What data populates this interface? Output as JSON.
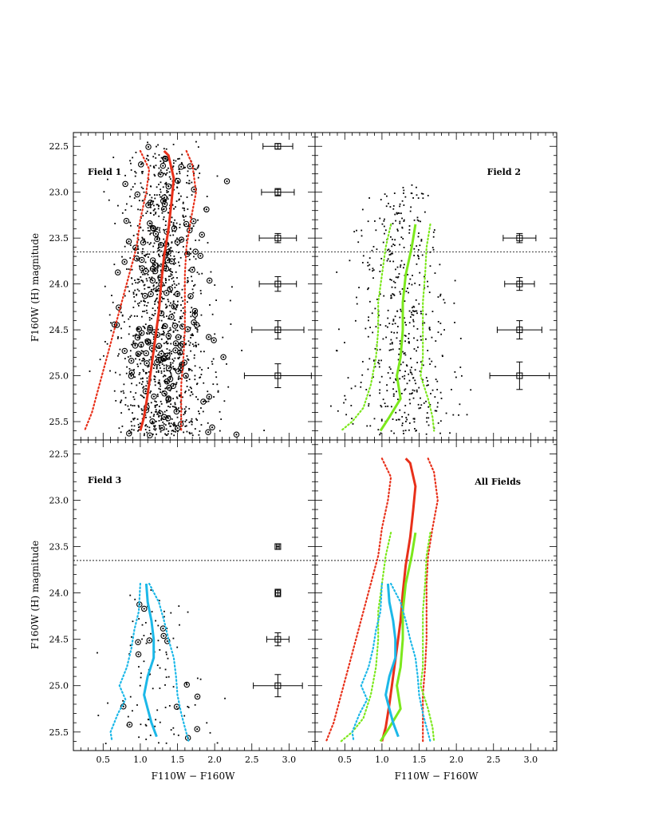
{
  "figure": {
    "x_axis_label": "F110W − F160W",
    "y_axis_label": "F160W (H) magnitude"
  },
  "colors": {
    "field1": "#e8301a",
    "field2": "#7ce81c",
    "field3": "#1cb8e8",
    "points": "#000000"
  },
  "chart_data": [
    {
      "type": "scatter",
      "title": "Field 1",
      "xlabel": "",
      "ylabel": "F160W (H) magnitude",
      "xlim": [
        0.1,
        3.35
      ],
      "ylim": [
        25.7,
        22.35
      ],
      "x_ticks": [],
      "y_ticks": [
        "22.5",
        "23.0",
        "23.5",
        "24.0",
        "24.5",
        "25.0",
        "25.5"
      ],
      "limit_line_y": 23.65,
      "error_bars": [
        {
          "x": 2.85,
          "y": 22.5,
          "xerr": 0.2,
          "yerr": 0.03
        },
        {
          "x": 2.85,
          "y": 23.0,
          "xerr": 0.22,
          "yerr": 0.04
        },
        {
          "x": 2.85,
          "y": 23.5,
          "xerr": 0.25,
          "yerr": 0.05
        },
        {
          "x": 2.85,
          "y": 24.0,
          "xerr": 0.25,
          "yerr": 0.08
        },
        {
          "x": 2.85,
          "y": 24.5,
          "xerr": 0.35,
          "yerr": 0.1
        },
        {
          "x": 2.85,
          "y": 25.0,
          "xerr": 0.45,
          "yerr": 0.13
        }
      ],
      "stars": {
        "n_points": 1400,
        "color_center": 1.3,
        "color_spread": 0.32,
        "mag_min": 22.45,
        "mag_max": 25.65,
        "ring_fraction": 0.12,
        "seed": 11
      },
      "series": [
        {
          "color_key": "field1",
          "median": [
            [
              1.32,
              22.55
            ],
            [
              1.38,
              22.6
            ],
            [
              1.45,
              22.85
            ],
            [
              1.42,
              23.1
            ],
            [
              1.38,
              23.4
            ],
            [
              1.32,
              23.7
            ],
            [
              1.28,
              24.0
            ],
            [
              1.25,
              24.3
            ],
            [
              1.2,
              24.6
            ],
            [
              1.15,
              24.9
            ],
            [
              1.1,
              25.2
            ],
            [
              1.05,
              25.45
            ],
            [
              1.0,
              25.6
            ]
          ],
          "lower": [
            [
              1.0,
              22.55
            ],
            [
              1.12,
              22.75
            ],
            [
              1.08,
              23.0
            ],
            [
              1.0,
              23.3
            ],
            [
              0.95,
              23.6
            ],
            [
              0.85,
              23.9
            ],
            [
              0.75,
              24.2
            ],
            [
              0.65,
              24.5
            ],
            [
              0.55,
              24.8
            ],
            [
              0.45,
              25.1
            ],
            [
              0.35,
              25.4
            ],
            [
              0.25,
              25.6
            ]
          ],
          "upper": [
            [
              1.62,
              22.55
            ],
            [
              1.7,
              22.7
            ],
            [
              1.75,
              23.0
            ],
            [
              1.68,
              23.3
            ],
            [
              1.62,
              23.6
            ],
            [
              1.6,
              23.9
            ],
            [
              1.6,
              24.2
            ],
            [
              1.6,
              24.5
            ],
            [
              1.58,
              24.8
            ],
            [
              1.55,
              25.1
            ],
            [
              1.55,
              25.4
            ],
            [
              1.55,
              25.6
            ]
          ]
        }
      ]
    },
    {
      "type": "scatter",
      "title": "Field 2",
      "xlabel": "",
      "ylabel": "",
      "xlim": [
        0.1,
        3.35
      ],
      "ylim": [
        25.7,
        22.35
      ],
      "x_ticks": [],
      "y_ticks": [],
      "limit_line_y": 23.65,
      "error_bars": [
        {
          "x": 2.85,
          "y": 23.5,
          "xerr": 0.22,
          "yerr": 0.05
        },
        {
          "x": 2.85,
          "y": 24.0,
          "xerr": 0.2,
          "yerr": 0.07
        },
        {
          "x": 2.85,
          "y": 24.5,
          "xerr": 0.3,
          "yerr": 0.1
        },
        {
          "x": 2.85,
          "y": 25.0,
          "xerr": 0.4,
          "yerr": 0.15
        }
      ],
      "stars": {
        "n_points": 520,
        "color_center": 1.25,
        "color_spread": 0.34,
        "mag_min": 22.9,
        "mag_max": 25.65,
        "ring_fraction": 0.0,
        "seed": 23
      },
      "series": [
        {
          "color_key": "field2",
          "median": [
            [
              1.45,
              23.35
            ],
            [
              1.4,
              23.6
            ],
            [
              1.32,
              23.9
            ],
            [
              1.28,
              24.2
            ],
            [
              1.28,
              24.5
            ],
            [
              1.25,
              24.8
            ],
            [
              1.2,
              25.0
            ],
            [
              1.25,
              25.25
            ],
            [
              1.1,
              25.45
            ],
            [
              0.98,
              25.6
            ]
          ],
          "lower": [
            [
              1.12,
              23.35
            ],
            [
              1.05,
              23.6
            ],
            [
              1.0,
              23.9
            ],
            [
              0.95,
              24.2
            ],
            [
              0.95,
              24.5
            ],
            [
              0.92,
              24.8
            ],
            [
              0.85,
              25.1
            ],
            [
              0.75,
              25.35
            ],
            [
              0.6,
              25.5
            ],
            [
              0.45,
              25.6
            ]
          ],
          "upper": [
            [
              1.65,
              23.35
            ],
            [
              1.6,
              23.6
            ],
            [
              1.58,
              23.9
            ],
            [
              1.55,
              24.2
            ],
            [
              1.55,
              24.5
            ],
            [
              1.55,
              24.8
            ],
            [
              1.52,
              25.0
            ],
            [
              1.62,
              25.25
            ],
            [
              1.68,
              25.45
            ],
            [
              1.7,
              25.6
            ]
          ]
        }
      ]
    },
    {
      "type": "scatter",
      "title": "Field 3",
      "xlabel": "F110W − F160W",
      "ylabel": "F160W (H) magnitude",
      "xlim": [
        0.1,
        3.35
      ],
      "ylim": [
        25.7,
        22.35
      ],
      "x_ticks": [
        "0.5",
        "1.0",
        "1.5",
        "2.0",
        "2.5",
        "3.0"
      ],
      "y_ticks": [
        "22.5",
        "23.0",
        "23.5",
        "24.0",
        "24.5",
        "25.0",
        "25.5"
      ],
      "limit_line_y": 23.65,
      "error_bars": [
        {
          "x": 2.85,
          "y": 23.5,
          "xerr": 0.02,
          "yerr": 0.03
        },
        {
          "x": 2.85,
          "y": 24.0,
          "xerr": 0.03,
          "yerr": 0.04
        },
        {
          "x": 2.85,
          "y": 24.5,
          "xerr": 0.15,
          "yerr": 0.07
        },
        {
          "x": 2.85,
          "y": 25.0,
          "xerr": 0.33,
          "yerr": 0.12
        }
      ],
      "stars": {
        "n_points": 110,
        "color_center": 1.2,
        "color_spread": 0.35,
        "mag_min": 23.9,
        "mag_max": 25.65,
        "ring_fraction": 0.14,
        "seed": 37
      },
      "series": [
        {
          "color_key": "field3",
          "median": [
            [
              1.08,
              23.9
            ],
            [
              1.1,
              24.1
            ],
            [
              1.15,
              24.3
            ],
            [
              1.18,
              24.5
            ],
            [
              1.18,
              24.7
            ],
            [
              1.1,
              24.9
            ],
            [
              1.05,
              25.1
            ],
            [
              1.1,
              25.25
            ],
            [
              1.15,
              25.4
            ],
            [
              1.22,
              25.55
            ]
          ],
          "lower": [
            [
              1.0,
              23.9
            ],
            [
              0.98,
              24.2
            ],
            [
              0.92,
              24.4
            ],
            [
              0.88,
              24.6
            ],
            [
              0.82,
              24.8
            ],
            [
              0.72,
              25.0
            ],
            [
              0.8,
              25.15
            ],
            [
              0.7,
              25.3
            ],
            [
              0.6,
              25.5
            ],
            [
              0.62,
              25.6
            ]
          ],
          "upper": [
            [
              1.12,
              23.9
            ],
            [
              1.25,
              24.1
            ],
            [
              1.32,
              24.3
            ],
            [
              1.38,
              24.5
            ],
            [
              1.45,
              24.7
            ],
            [
              1.48,
              24.9
            ],
            [
              1.5,
              25.1
            ],
            [
              1.55,
              25.3
            ],
            [
              1.6,
              25.45
            ],
            [
              1.65,
              25.6
            ]
          ]
        }
      ]
    },
    {
      "type": "line",
      "title": "All Fields",
      "xlabel": "F110W − F160W",
      "ylabel": "",
      "xlim": [
        0.1,
        3.35
      ],
      "ylim": [
        25.7,
        22.35
      ],
      "x_ticks": [
        "0.5",
        "1.0",
        "1.5",
        "2.0",
        "2.5",
        "3.0"
      ],
      "y_ticks": [],
      "limit_line_y": 23.65,
      "error_bars": [],
      "series": [
        {
          "color_key": "field1",
          "median": [
            [
              1.32,
              22.55
            ],
            [
              1.38,
              22.6
            ],
            [
              1.45,
              22.85
            ],
            [
              1.42,
              23.1
            ],
            [
              1.38,
              23.4
            ],
            [
              1.32,
              23.7
            ],
            [
              1.28,
              24.0
            ],
            [
              1.25,
              24.3
            ],
            [
              1.2,
              24.6
            ],
            [
              1.15,
              24.9
            ],
            [
              1.1,
              25.2
            ],
            [
              1.05,
              25.45
            ],
            [
              1.0,
              25.6
            ]
          ],
          "lower": [
            [
              1.0,
              22.55
            ],
            [
              1.12,
              22.75
            ],
            [
              1.08,
              23.0
            ],
            [
              1.0,
              23.3
            ],
            [
              0.95,
              23.6
            ],
            [
              0.85,
              23.9
            ],
            [
              0.75,
              24.2
            ],
            [
              0.65,
              24.5
            ],
            [
              0.55,
              24.8
            ],
            [
              0.45,
              25.1
            ],
            [
              0.35,
              25.4
            ],
            [
              0.25,
              25.6
            ]
          ],
          "upper": [
            [
              1.62,
              22.55
            ],
            [
              1.7,
              22.7
            ],
            [
              1.75,
              23.0
            ],
            [
              1.68,
              23.3
            ],
            [
              1.62,
              23.6
            ],
            [
              1.6,
              23.9
            ],
            [
              1.6,
              24.2
            ],
            [
              1.6,
              24.5
            ],
            [
              1.58,
              24.8
            ],
            [
              1.55,
              25.1
            ],
            [
              1.55,
              25.4
            ],
            [
              1.55,
              25.6
            ]
          ]
        },
        {
          "color_key": "field2",
          "median": [
            [
              1.45,
              23.35
            ],
            [
              1.4,
              23.6
            ],
            [
              1.32,
              23.9
            ],
            [
              1.28,
              24.2
            ],
            [
              1.28,
              24.5
            ],
            [
              1.25,
              24.8
            ],
            [
              1.2,
              25.0
            ],
            [
              1.25,
              25.25
            ],
            [
              1.1,
              25.45
            ],
            [
              0.98,
              25.6
            ]
          ],
          "lower": [
            [
              1.12,
              23.35
            ],
            [
              1.05,
              23.6
            ],
            [
              1.0,
              23.9
            ],
            [
              0.95,
              24.2
            ],
            [
              0.95,
              24.5
            ],
            [
              0.92,
              24.8
            ],
            [
              0.85,
              25.1
            ],
            [
              0.75,
              25.35
            ],
            [
              0.6,
              25.5
            ],
            [
              0.45,
              25.6
            ]
          ],
          "upper": [
            [
              1.65,
              23.35
            ],
            [
              1.6,
              23.6
            ],
            [
              1.58,
              23.9
            ],
            [
              1.55,
              24.2
            ],
            [
              1.55,
              24.5
            ],
            [
              1.55,
              24.8
            ],
            [
              1.52,
              25.0
            ],
            [
              1.62,
              25.25
            ],
            [
              1.68,
              25.45
            ],
            [
              1.7,
              25.6
            ]
          ]
        },
        {
          "color_key": "field3",
          "median": [
            [
              1.08,
              23.9
            ],
            [
              1.1,
              24.1
            ],
            [
              1.15,
              24.3
            ],
            [
              1.18,
              24.5
            ],
            [
              1.18,
              24.7
            ],
            [
              1.1,
              24.9
            ],
            [
              1.05,
              25.1
            ],
            [
              1.1,
              25.25
            ],
            [
              1.15,
              25.4
            ],
            [
              1.22,
              25.55
            ]
          ],
          "lower": [
            [
              1.0,
              23.9
            ],
            [
              0.98,
              24.2
            ],
            [
              0.92,
              24.4
            ],
            [
              0.88,
              24.6
            ],
            [
              0.82,
              24.8
            ],
            [
              0.72,
              25.0
            ],
            [
              0.8,
              25.15
            ],
            [
              0.7,
              25.3
            ],
            [
              0.6,
              25.5
            ],
            [
              0.62,
              25.6
            ]
          ],
          "upper": [
            [
              1.12,
              23.9
            ],
            [
              1.25,
              24.1
            ],
            [
              1.32,
              24.3
            ],
            [
              1.38,
              24.5
            ],
            [
              1.45,
              24.7
            ],
            [
              1.48,
              24.9
            ],
            [
              1.5,
              25.1
            ],
            [
              1.55,
              25.3
            ],
            [
              1.6,
              25.45
            ],
            [
              1.65,
              25.6
            ]
          ]
        }
      ]
    }
  ]
}
